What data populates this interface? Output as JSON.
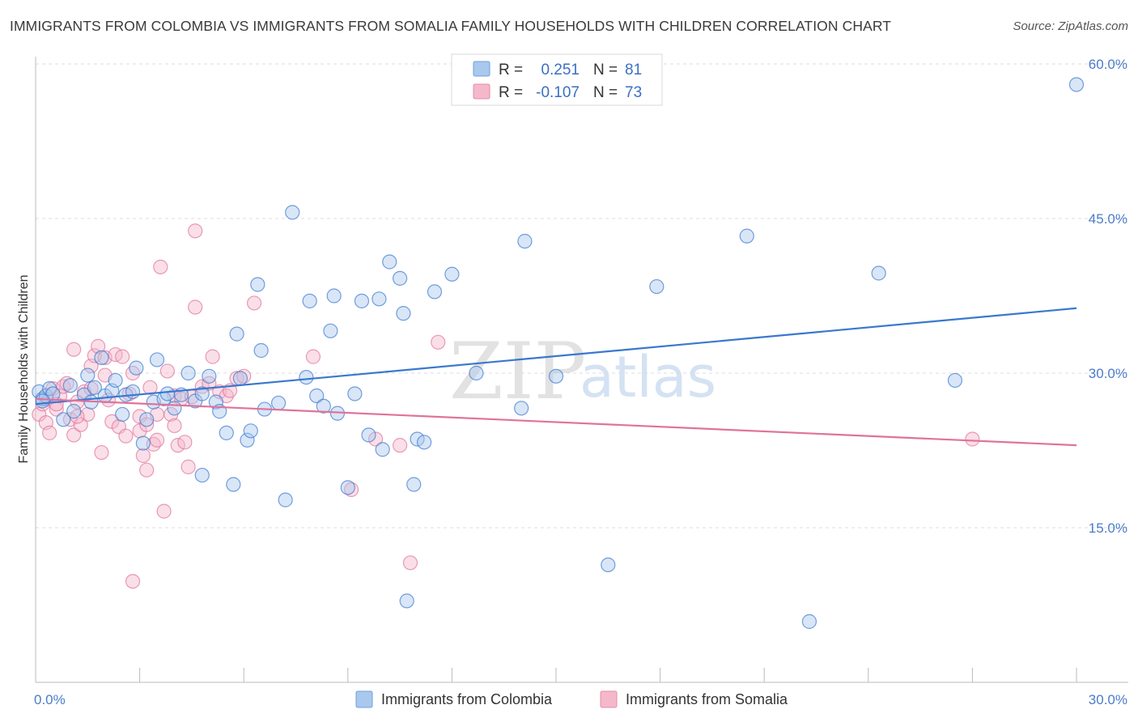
{
  "header": {
    "title": "IMMIGRANTS FROM COLOMBIA VS IMMIGRANTS FROM SOMALIA FAMILY HOUSEHOLDS WITH CHILDREN CORRELATION CHART",
    "source": "Source: ZipAtlas.com"
  },
  "watermark": {
    "part1": "ZIP",
    "part2": "atlas"
  },
  "legend": {
    "r_label": "R =",
    "n_label": "N =",
    "colombia": {
      "r": "0.251",
      "n": "81"
    },
    "somalia": {
      "r": "-0.107",
      "n": "73"
    }
  },
  "colors": {
    "colombia_fill": "#a9c8ee",
    "colombia_line": "#3a78cf",
    "somalia_fill": "#f5b8cb",
    "somalia_line": "#e0739a"
  },
  "chart_data": {
    "type": "scatter",
    "title": "IMMIGRANTS FROM COLOMBIA VS IMMIGRANTS FROM SOMALIA FAMILY HOUSEHOLDS WITH CHILDREN CORRELATION CHART",
    "xlabel": "",
    "ylabel": "Family Households with Children",
    "xlim": [
      0,
      30
    ],
    "ylim": [
      0,
      60
    ],
    "x_tick_labels": [
      "0.0%",
      "30.0%"
    ],
    "y_ticks": [
      15,
      30,
      45,
      60
    ],
    "y_tick_labels": [
      "15.0%",
      "30.0%",
      "45.0%",
      "60.0%"
    ],
    "series": [
      {
        "name": "Immigrants from Colombia",
        "trend": [
          [
            0,
            27.0
          ],
          [
            30,
            36.3
          ]
        ],
        "points": [
          [
            0.1,
            28.2
          ],
          [
            0.2,
            27.5
          ],
          [
            0.3,
            27.8
          ],
          [
            0.4,
            28.5
          ],
          [
            0.5,
            28.0
          ],
          [
            0.8,
            25.5
          ],
          [
            1.0,
            28.8
          ],
          [
            1.1,
            26.3
          ],
          [
            1.4,
            27.9
          ],
          [
            1.5,
            29.8
          ],
          [
            1.6,
            27.2
          ],
          [
            1.7,
            28.6
          ],
          [
            1.9,
            31.5
          ],
          [
            2.0,
            27.8
          ],
          [
            2.2,
            28.3
          ],
          [
            2.3,
            29.3
          ],
          [
            2.5,
            26.0
          ],
          [
            2.6,
            27.9
          ],
          [
            2.8,
            28.2
          ],
          [
            2.9,
            30.5
          ],
          [
            3.1,
            23.2
          ],
          [
            3.2,
            25.5
          ],
          [
            3.4,
            27.2
          ],
          [
            3.5,
            31.3
          ],
          [
            3.7,
            27.5
          ],
          [
            3.8,
            28.0
          ],
          [
            4.0,
            26.6
          ],
          [
            4.2,
            27.9
          ],
          [
            4.4,
            30.0
          ],
          [
            4.6,
            27.3
          ],
          [
            4.8,
            28.0
          ],
          [
            4.8,
            20.1
          ],
          [
            5.0,
            29.7
          ],
          [
            5.2,
            27.2
          ],
          [
            5.3,
            26.3
          ],
          [
            5.5,
            24.2
          ],
          [
            5.7,
            19.2
          ],
          [
            5.8,
            33.8
          ],
          [
            5.9,
            29.5
          ],
          [
            6.1,
            23.5
          ],
          [
            6.2,
            24.4
          ],
          [
            6.4,
            38.6
          ],
          [
            6.5,
            32.2
          ],
          [
            6.6,
            26.5
          ],
          [
            7.0,
            27.1
          ],
          [
            7.2,
            17.7
          ],
          [
            7.4,
            45.6
          ],
          [
            7.8,
            29.6
          ],
          [
            7.9,
            37.0
          ],
          [
            8.1,
            27.8
          ],
          [
            8.3,
            26.8
          ],
          [
            8.5,
            34.1
          ],
          [
            8.6,
            37.5
          ],
          [
            8.7,
            26.1
          ],
          [
            9.0,
            18.9
          ],
          [
            9.2,
            28.0
          ],
          [
            9.4,
            37.0
          ],
          [
            9.6,
            24.0
          ],
          [
            9.9,
            37.2
          ],
          [
            10.0,
            22.6
          ],
          [
            10.2,
            40.8
          ],
          [
            10.5,
            39.2
          ],
          [
            10.6,
            35.8
          ],
          [
            10.7,
            7.9
          ],
          [
            10.9,
            19.2
          ],
          [
            11.0,
            23.6
          ],
          [
            11.2,
            23.3
          ],
          [
            11.5,
            37.9
          ],
          [
            12.0,
            39.6
          ],
          [
            12.7,
            30.0
          ],
          [
            14.0,
            26.6
          ],
          [
            14.1,
            42.8
          ],
          [
            15.0,
            29.7
          ],
          [
            16.5,
            11.4
          ],
          [
            17.9,
            38.4
          ],
          [
            20.5,
            43.3
          ],
          [
            22.3,
            5.9
          ],
          [
            24.3,
            39.7
          ],
          [
            26.5,
            29.3
          ],
          [
            30.0,
            58.0
          ],
          [
            0.2,
            27.3
          ]
        ]
      },
      {
        "name": "Immigrants from Somalia",
        "trend": [
          [
            0,
            27.5
          ],
          [
            30,
            23.0
          ]
        ],
        "points": [
          [
            0.1,
            26.0
          ],
          [
            0.2,
            27.0
          ],
          [
            0.3,
            25.2
          ],
          [
            0.4,
            24.2
          ],
          [
            0.5,
            28.5
          ],
          [
            0.6,
            26.5
          ],
          [
            0.7,
            27.8
          ],
          [
            0.8,
            28.7
          ],
          [
            0.9,
            29.0
          ],
          [
            1.0,
            25.5
          ],
          [
            1.1,
            24.0
          ],
          [
            1.1,
            32.3
          ],
          [
            1.2,
            27.2
          ],
          [
            1.3,
            25.0
          ],
          [
            1.4,
            28.2
          ],
          [
            1.5,
            26.0
          ],
          [
            1.6,
            30.7
          ],
          [
            1.6,
            28.5
          ],
          [
            1.7,
            31.7
          ],
          [
            1.8,
            32.6
          ],
          [
            1.9,
            22.3
          ],
          [
            2.0,
            31.5
          ],
          [
            2.1,
            27.4
          ],
          [
            2.2,
            25.3
          ],
          [
            2.3,
            31.8
          ],
          [
            2.4,
            24.8
          ],
          [
            2.5,
            31.6
          ],
          [
            2.6,
            23.9
          ],
          [
            2.7,
            28.0
          ],
          [
            2.8,
            30.0
          ],
          [
            2.8,
            9.8
          ],
          [
            3.0,
            25.8
          ],
          [
            3.0,
            24.4
          ],
          [
            3.1,
            22.0
          ],
          [
            3.2,
            20.6
          ],
          [
            3.3,
            28.6
          ],
          [
            3.4,
            23.1
          ],
          [
            3.5,
            23.5
          ],
          [
            3.5,
            26.0
          ],
          [
            3.6,
            40.3
          ],
          [
            3.7,
            16.6
          ],
          [
            3.8,
            30.2
          ],
          [
            3.9,
            26.0
          ],
          [
            4.0,
            27.8
          ],
          [
            4.1,
            23.0
          ],
          [
            4.2,
            27.5
          ],
          [
            4.3,
            23.3
          ],
          [
            4.4,
            20.9
          ],
          [
            4.5,
            27.7
          ],
          [
            4.6,
            36.4
          ],
          [
            4.6,
            43.8
          ],
          [
            4.8,
            28.7
          ],
          [
            5.0,
            29.0
          ],
          [
            5.1,
            31.6
          ],
          [
            5.3,
            28.2
          ],
          [
            5.5,
            27.8
          ],
          [
            5.8,
            29.5
          ],
          [
            6.0,
            29.7
          ],
          [
            6.3,
            36.8
          ],
          [
            8.0,
            31.6
          ],
          [
            9.1,
            18.7
          ],
          [
            9.8,
            23.6
          ],
          [
            10.5,
            23.0
          ],
          [
            10.8,
            11.6
          ],
          [
            11.6,
            33.0
          ],
          [
            27.0,
            23.6
          ],
          [
            0.3,
            27.5
          ],
          [
            0.6,
            27.0
          ],
          [
            1.2,
            25.8
          ],
          [
            2.0,
            29.8
          ],
          [
            3.2,
            25.0
          ],
          [
            4.0,
            24.9
          ],
          [
            5.6,
            28.3
          ]
        ]
      }
    ]
  },
  "bottom_legend": [
    "Immigrants from Colombia",
    "Immigrants from Somalia"
  ]
}
